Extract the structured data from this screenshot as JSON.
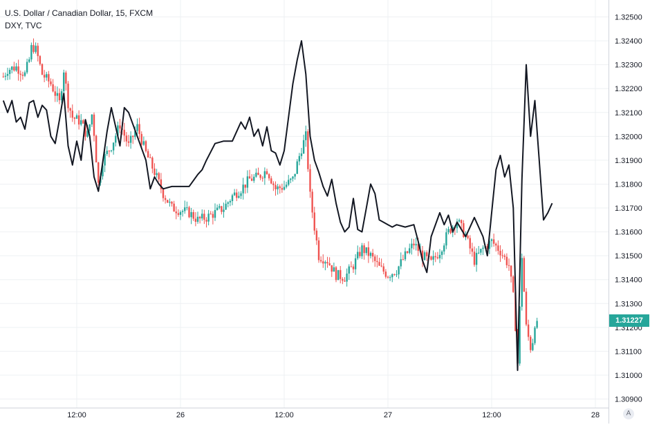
{
  "legend": {
    "main_series": "U.S. Dollar / Canadian Dollar, 15, FXCM",
    "compare_series": "DXY, TVC"
  },
  "price_axis": {
    "current_price_label": "1.31227",
    "auto_label": "A"
  },
  "colors": {
    "up": "#26a69a",
    "down": "#ef5350",
    "compare_line": "#131722",
    "grid": "#eef0f3",
    "axis_text": "#131722",
    "price_tag_bg": "#26a69a"
  },
  "chart_data": {
    "type": "line",
    "main_series": "U.S. Dollar / Canadian Dollar, 15, FXCM",
    "compare_series": "DXY, TVC",
    "y_ticks": [
      "1.32500",
      "1.32400",
      "1.32300",
      "1.32200",
      "1.32100",
      "1.32000",
      "1.31900",
      "1.31800",
      "1.31700",
      "1.31600",
      "1.31500",
      "1.31400",
      "1.31300",
      "1.31200",
      "1.31100",
      "1.31000",
      "1.30900"
    ],
    "ylim": [
      1.3087,
      1.3255
    ],
    "x_tick_labels": [
      "12:00",
      "26",
      "12:00",
      "27",
      "12:00",
      "28"
    ],
    "x_tick_hours": [
      12,
      24,
      36,
      48,
      60,
      72
    ],
    "xlim_hours": [
      3.45,
      76.2
    ],
    "last_price": 1.31227,
    "usdcad_close": [
      [
        3.5,
        1.3225
      ],
      [
        4.0,
        1.3228
      ],
      [
        5.0,
        1.3229
      ],
      [
        6.0,
        1.3226
      ],
      [
        6.5,
        1.3232
      ],
      [
        6.8,
        1.3238
      ],
      [
        7.3,
        1.3236
      ],
      [
        8.0,
        1.3226
      ],
      [
        9.0,
        1.3222
      ],
      [
        10.0,
        1.3214
      ],
      [
        10.5,
        1.3228
      ],
      [
        11.0,
        1.3214
      ],
      [
        11.5,
        1.3208
      ],
      [
        12.5,
        1.3206
      ],
      [
        13.2,
        1.32
      ],
      [
        13.8,
        1.321
      ],
      [
        14.5,
        1.318
      ],
      [
        15.0,
        1.319
      ],
      [
        16.0,
        1.3196
      ],
      [
        17.0,
        1.3205
      ],
      [
        18.0,
        1.3196
      ],
      [
        19.0,
        1.3204
      ],
      [
        20.0,
        1.3193
      ],
      [
        21.0,
        1.3185
      ],
      [
        22.0,
        1.3176
      ],
      [
        23.0,
        1.317
      ],
      [
        24.0,
        1.3169
      ],
      [
        25.0,
        1.3168
      ],
      [
        26.0,
        1.3165
      ],
      [
        27.0,
        1.3166
      ],
      [
        28.0,
        1.3168
      ],
      [
        29.0,
        1.317
      ],
      [
        30.0,
        1.3175
      ],
      [
        31.0,
        1.3178
      ],
      [
        32.0,
        1.3182
      ],
      [
        33.0,
        1.3183
      ],
      [
        34.0,
        1.3186
      ],
      [
        35.0,
        1.3178
      ],
      [
        36.0,
        1.3179
      ],
      [
        37.0,
        1.3182
      ],
      [
        38.0,
        1.3195
      ],
      [
        38.5,
        1.32
      ],
      [
        39.0,
        1.3175
      ],
      [
        39.5,
        1.3162
      ],
      [
        40.0,
        1.315
      ],
      [
        41.0,
        1.3148
      ],
      [
        42.0,
        1.3142
      ],
      [
        43.0,
        1.3141
      ],
      [
        44.0,
        1.3146
      ],
      [
        45.0,
        1.3153
      ],
      [
        46.0,
        1.315
      ],
      [
        47.0,
        1.3145
      ],
      [
        48.0,
        1.3142
      ],
      [
        49.0,
        1.3144
      ],
      [
        50.0,
        1.315
      ],
      [
        51.0,
        1.3155
      ],
      [
        52.0,
        1.315
      ],
      [
        53.0,
        1.3147
      ],
      [
        54.0,
        1.3152
      ],
      [
        55.0,
        1.316
      ],
      [
        56.0,
        1.3165
      ],
      [
        57.0,
        1.3158
      ],
      [
        58.0,
        1.3148
      ],
      [
        59.0,
        1.3153
      ],
      [
        60.0,
        1.3156
      ],
      [
        61.0,
        1.3152
      ],
      [
        62.0,
        1.3146
      ],
      [
        62.6,
        1.313
      ],
      [
        63.0,
        1.3105
      ],
      [
        63.5,
        1.315
      ],
      [
        64.0,
        1.312
      ],
      [
        64.6,
        1.311
      ],
      [
        65.0,
        1.3122
      ],
      [
        65.3,
        1.3123
      ]
    ],
    "dxy_line": [
      [
        3.5,
        1.3215
      ],
      [
        4.0,
        1.321
      ],
      [
        4.5,
        1.3215
      ],
      [
        5.0,
        1.3206
      ],
      [
        5.5,
        1.3208
      ],
      [
        6.0,
        1.3203
      ],
      [
        6.5,
        1.3214
      ],
      [
        7.0,
        1.3215
      ],
      [
        7.5,
        1.3208
      ],
      [
        8.0,
        1.3213
      ],
      [
        8.5,
        1.3211
      ],
      [
        9.0,
        1.32
      ],
      [
        9.5,
        1.3197
      ],
      [
        10.0,
        1.3207
      ],
      [
        10.5,
        1.3218
      ],
      [
        11.0,
        1.3196
      ],
      [
        11.5,
        1.3188
      ],
      [
        12.0,
        1.3198
      ],
      [
        12.5,
        1.319
      ],
      [
        13.0,
        1.3207
      ],
      [
        13.5,
        1.32
      ],
      [
        14.0,
        1.3183
      ],
      [
        14.5,
        1.3177
      ],
      [
        15.0,
        1.3189
      ],
      [
        15.5,
        1.3202
      ],
      [
        16.0,
        1.3212
      ],
      [
        17.0,
        1.3196
      ],
      [
        17.5,
        1.3212
      ],
      [
        18.0,
        1.321
      ],
      [
        19.0,
        1.32
      ],
      [
        20.0,
        1.319
      ],
      [
        20.5,
        1.3178
      ],
      [
        21.0,
        1.3183
      ],
      [
        21.5,
        1.318
      ],
      [
        22.0,
        1.3178
      ],
      [
        23.0,
        1.3179
      ],
      [
        24.0,
        1.3179
      ],
      [
        25.0,
        1.3179
      ],
      [
        26.0,
        1.3184
      ],
      [
        26.5,
        1.3186
      ],
      [
        27.0,
        1.319
      ],
      [
        28.0,
        1.3197
      ],
      [
        29.0,
        1.3198
      ],
      [
        30.0,
        1.3198
      ],
      [
        31.0,
        1.3206
      ],
      [
        31.5,
        1.3203
      ],
      [
        32.0,
        1.3208
      ],
      [
        32.5,
        1.32
      ],
      [
        33.0,
        1.3203
      ],
      [
        33.5,
        1.3196
      ],
      [
        34.0,
        1.3204
      ],
      [
        34.5,
        1.3194
      ],
      [
        35.0,
        1.3193
      ],
      [
        35.5,
        1.3188
      ],
      [
        36.0,
        1.3194
      ],
      [
        37.0,
        1.3222
      ],
      [
        37.5,
        1.3232
      ],
      [
        38.0,
        1.324
      ],
      [
        38.5,
        1.3226
      ],
      [
        39.0,
        1.32
      ],
      [
        39.5,
        1.319
      ],
      [
        40.0,
        1.3185
      ],
      [
        40.5,
        1.3179
      ],
      [
        41.0,
        1.3175
      ],
      [
        41.5,
        1.3182
      ],
      [
        42.0,
        1.3172
      ],
      [
        42.5,
        1.3164
      ],
      [
        43.0,
        1.316
      ],
      [
        43.5,
        1.3162
      ],
      [
        44.0,
        1.3174
      ],
      [
        44.5,
        1.3161
      ],
      [
        45.0,
        1.316
      ],
      [
        45.5,
        1.317
      ],
      [
        46.0,
        1.318
      ],
      [
        46.5,
        1.3176
      ],
      [
        47.0,
        1.3165
      ],
      [
        47.5,
        1.3164
      ],
      [
        48.0,
        1.3163
      ],
      [
        48.5,
        1.3162
      ],
      [
        49.0,
        1.3163
      ],
      [
        50.0,
        1.3162
      ],
      [
        51.0,
        1.3163
      ],
      [
        51.5,
        1.3156
      ],
      [
        52.0,
        1.3148
      ],
      [
        52.5,
        1.3143
      ],
      [
        53.0,
        1.3158
      ],
      [
        54.0,
        1.3168
      ],
      [
        54.5,
        1.3163
      ],
      [
        55.0,
        1.3167
      ],
      [
        55.5,
        1.316
      ],
      [
        56.0,
        1.3164
      ],
      [
        57.0,
        1.3158
      ],
      [
        57.5,
        1.3162
      ],
      [
        58.0,
        1.3166
      ],
      [
        59.0,
        1.3158
      ],
      [
        59.5,
        1.315
      ],
      [
        60.0,
        1.3168
      ],
      [
        60.5,
        1.3186
      ],
      [
        61.0,
        1.3192
      ],
      [
        61.5,
        1.3183
      ],
      [
        62.0,
        1.3188
      ],
      [
        62.5,
        1.317
      ],
      [
        63.0,
        1.3102
      ],
      [
        63.5,
        1.3182
      ],
      [
        64.0,
        1.323
      ],
      [
        64.5,
        1.32
      ],
      [
        65.0,
        1.3215
      ],
      [
        65.5,
        1.319
      ],
      [
        66.0,
        1.3165
      ],
      [
        66.5,
        1.3168
      ],
      [
        67.0,
        1.3172
      ]
    ]
  }
}
